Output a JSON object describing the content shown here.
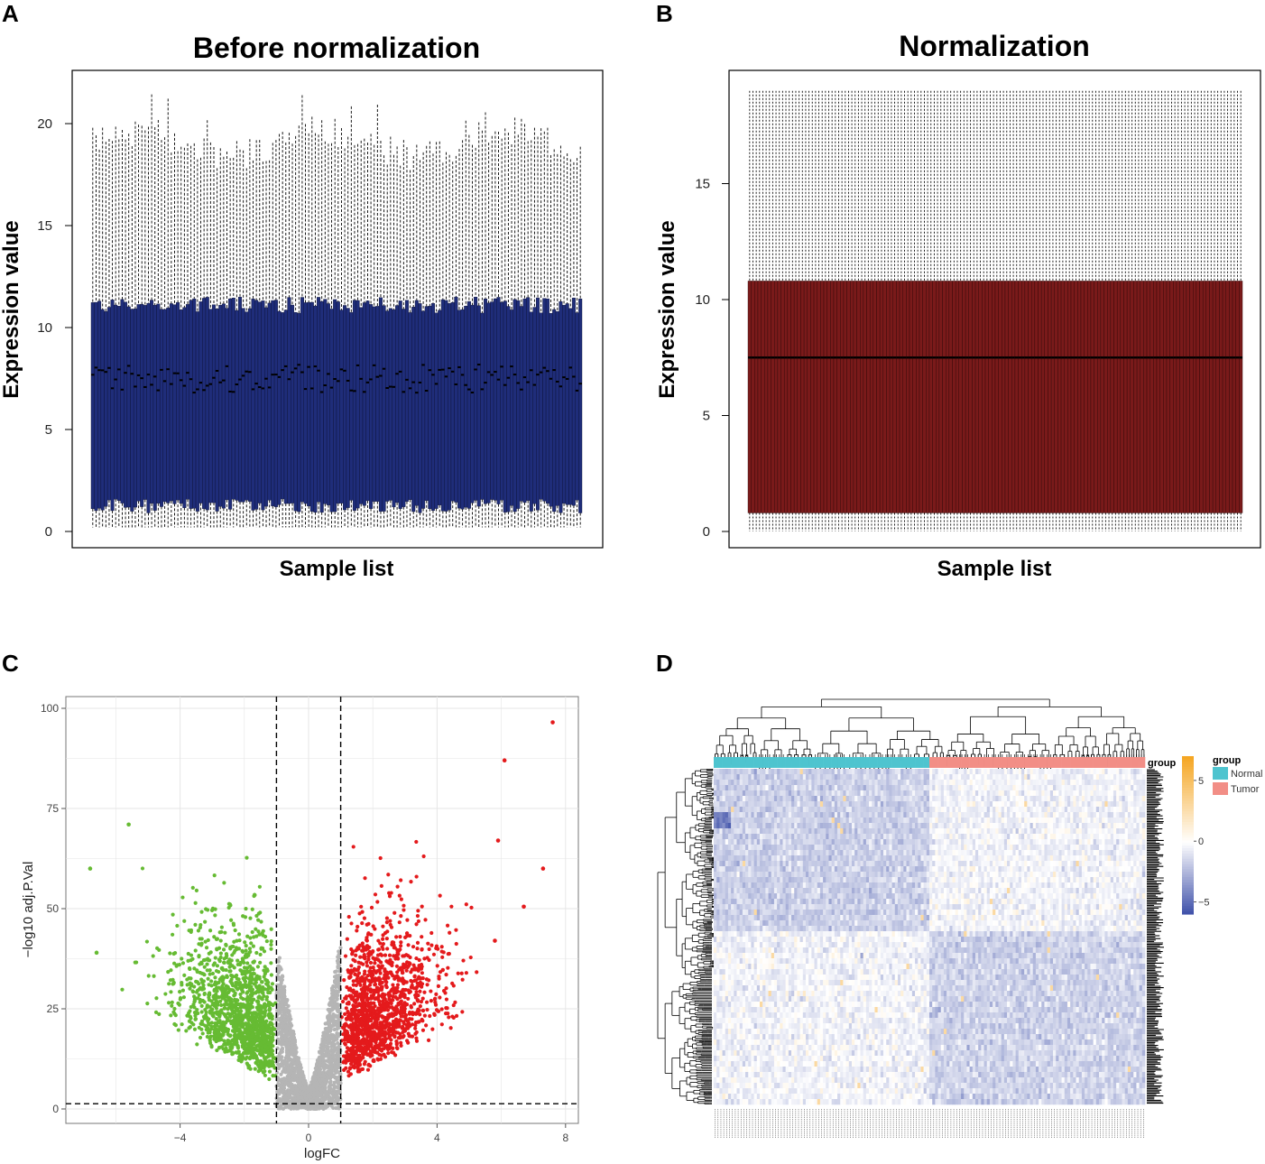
{
  "colors": {
    "box_fill_A": "#1f2d7a",
    "box_fill_B": "#7a1a1a",
    "volcano_up": "#e41a1c",
    "volcano_down": "#66bb33",
    "volcano_ns": "#b5b5b5",
    "group_normal": "#4ec4cf",
    "group_tumor": "#f28e86",
    "heat_low": "#3c4ea8",
    "heat_mid": "#ffffff",
    "heat_high": "#f5a623"
  },
  "chart_data": [
    {
      "panel": "A",
      "type": "box",
      "title": "Before normalization",
      "xlabel": "Sample list",
      "ylabel": "Expression value",
      "ylim": [
        0,
        22.3
      ],
      "yticks": [
        "0",
        "5",
        "10",
        "15",
        "20"
      ],
      "n_samples": 150,
      "summary": {
        "whisker_low_min": 0.2,
        "q1_range": [
          0.9,
          1.6
        ],
        "median_range": [
          6.8,
          8.2
        ],
        "q3_range": [
          10.7,
          11.5
        ],
        "whisker_high_range": [
          18.3,
          21.6
        ]
      }
    },
    {
      "panel": "B",
      "type": "box",
      "title": "Normalization",
      "xlabel": "Sample list",
      "ylabel": "Expression value",
      "ylim": [
        0,
        19.8
      ],
      "yticks": [
        "0",
        "5",
        "10",
        "15"
      ],
      "n_samples": 150,
      "summary": {
        "whisker_low": 0.6,
        "q1": 0.8,
        "median": 7.5,
        "q3": 10.8,
        "whisker_high": 19.0
      }
    },
    {
      "panel": "C",
      "type": "scatter",
      "xlabel": "logFC",
      "ylabel": "−log10 adj.P.Val",
      "xlim": [
        -7.2,
        8.3
      ],
      "ylim": [
        -3,
        101
      ],
      "xticks": [
        "−4",
        "0",
        "4",
        "8"
      ],
      "yticks": [
        "0",
        "25",
        "50",
        "75",
        "100"
      ],
      "thresholds": {
        "logFC": [
          -1,
          1
        ],
        "neg_log10_padj": 1.3
      },
      "highlighted_points": [
        {
          "x": 7.6,
          "y": 96.5,
          "group": "up"
        },
        {
          "x": 6.1,
          "y": 87.0,
          "group": "up"
        },
        {
          "x": 5.9,
          "y": 67.0,
          "group": "up"
        },
        {
          "x": 7.3,
          "y": 60.0,
          "group": "up"
        },
        {
          "x": 6.7,
          "y": 50.5,
          "group": "up"
        },
        {
          "x": 5.8,
          "y": 42.0,
          "group": "up"
        },
        {
          "x": -5.6,
          "y": 71.0,
          "group": "down"
        },
        {
          "x": -6.8,
          "y": 60.0,
          "group": "down"
        },
        {
          "x": -6.6,
          "y": 39.0,
          "group": "down"
        }
      ],
      "groups": [
        "up",
        "down",
        "not significant"
      ]
    },
    {
      "panel": "D",
      "type": "heatmap",
      "annotation_title": "group",
      "legend_title": "group",
      "legend_items": [
        "Normal",
        "Tumor"
      ],
      "color_scale_ticks": [
        "5",
        "0",
        "−5"
      ],
      "n_samples_normal": 75,
      "n_samples_tumor": 75
    }
  ],
  "panels": {
    "A": {
      "letter": "A",
      "title": "Before normalization",
      "xlabel": "Sample list",
      "ylabel": "Expression value"
    },
    "B": {
      "letter": "B",
      "title": "Normalization",
      "xlabel": "Sample list",
      "ylabel": "Expression value"
    },
    "C": {
      "letter": "C",
      "xlabel": "logFC",
      "ylabel": "−log10 adj.P.Val"
    },
    "D": {
      "letter": "D",
      "annot_label": "group",
      "legend_title": "group",
      "legend_normal": "Normal",
      "legend_tumor": "Tumor"
    }
  }
}
